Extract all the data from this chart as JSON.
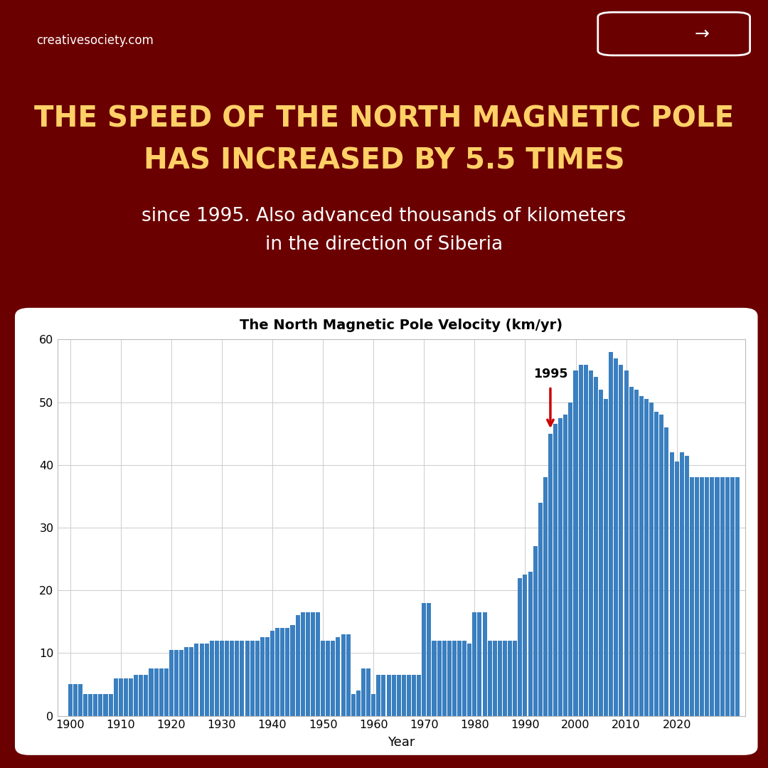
{
  "title": "The North Magnetic Pole Velocity (km/yr)",
  "xlabel": "Year",
  "background_color": "#6B0000",
  "chart_bg": "#ffffff",
  "bar_color": "#3a7fbf",
  "heading_line1": "THE SPEED OF THE NORTH MAGNETIC POLE",
  "heading_line2": "HAS INCREASED BY 5.5 TIMES",
  "subheading": "since 1995. Also advanced thousands of kilometers\nin the direction of Siberia",
  "heading_color": "#FFD066",
  "subheading_color": "#ffffff",
  "website": "creativesociety.com",
  "annotation_year": "1995",
  "annotation_color": "#cc0000",
  "ylim": [
    0,
    60
  ],
  "years": [
    1900,
    1901,
    1902,
    1903,
    1904,
    1905,
    1906,
    1907,
    1908,
    1909,
    1910,
    1911,
    1912,
    1913,
    1914,
    1915,
    1916,
    1917,
    1918,
    1919,
    1920,
    1921,
    1922,
    1923,
    1924,
    1925,
    1926,
    1927,
    1928,
    1929,
    1930,
    1931,
    1932,
    1933,
    1934,
    1935,
    1936,
    1937,
    1938,
    1939,
    1940,
    1941,
    1942,
    1943,
    1944,
    1945,
    1946,
    1947,
    1948,
    1949,
    1950,
    1951,
    1952,
    1953,
    1954,
    1955,
    1956,
    1957,
    1958,
    1959,
    1960,
    1961,
    1962,
    1963,
    1964,
    1965,
    1966,
    1967,
    1968,
    1969,
    1970,
    1971,
    1972,
    1973,
    1974,
    1975,
    1976,
    1977,
    1978,
    1979,
    1980,
    1981,
    1982,
    1983,
    1984,
    1985,
    1986,
    1987,
    1988,
    1989,
    1990,
    1991,
    1992,
    1993,
    1994,
    1995,
    1996,
    1997,
    1998,
    1999,
    2000,
    2001,
    2002,
    2003,
    2004,
    2005,
    2006,
    2007,
    2008,
    2009,
    2010,
    2011,
    2012,
    2013,
    2014,
    2015,
    2016,
    2017,
    2018,
    2019,
    2020,
    2021,
    2022,
    2023,
    2024,
    2025,
    2026,
    2027,
    2028,
    2029,
    2030,
    2031,
    2032
  ],
  "values": [
    5.0,
    5.0,
    5.0,
    3.5,
    3.5,
    3.5,
    3.5,
    3.5,
    3.5,
    6.0,
    6.0,
    6.0,
    6.0,
    6.5,
    6.5,
    6.5,
    7.5,
    7.5,
    7.5,
    7.5,
    10.5,
    10.5,
    10.5,
    11.0,
    11.0,
    11.5,
    11.5,
    11.5,
    12.0,
    12.0,
    12.0,
    12.0,
    12.0,
    12.0,
    12.0,
    12.0,
    12.0,
    12.0,
    12.5,
    12.5,
    13.5,
    14.0,
    14.0,
    14.0,
    14.5,
    16.0,
    16.5,
    16.5,
    16.5,
    16.5,
    12.0,
    12.0,
    12.0,
    12.5,
    13.0,
    13.0,
    3.5,
    4.0,
    7.5,
    7.5,
    3.5,
    6.5,
    6.5,
    6.5,
    6.5,
    6.5,
    6.5,
    6.5,
    6.5,
    6.5,
    18.0,
    18.0,
    12.0,
    12.0,
    12.0,
    12.0,
    12.0,
    12.0,
    12.0,
    11.5,
    16.5,
    16.5,
    16.5,
    12.0,
    12.0,
    12.0,
    12.0,
    12.0,
    12.0,
    22.0,
    22.5,
    23.0,
    27.0,
    34.0,
    38.0,
    45.0,
    46.5,
    47.5,
    48.0,
    50.0,
    55.0,
    56.0,
    56.0,
    55.0,
    54.0,
    52.0,
    50.5,
    58.0,
    57.0,
    56.0,
    55.0,
    52.5,
    52.0,
    51.0,
    50.5,
    50.0,
    48.5,
    48.0,
    46.0,
    42.0,
    40.5,
    42.0,
    41.5,
    38.0,
    38.0,
    38.0,
    38.0,
    38.0,
    38.0,
    38.0,
    38.0,
    38.0,
    38.0
  ]
}
